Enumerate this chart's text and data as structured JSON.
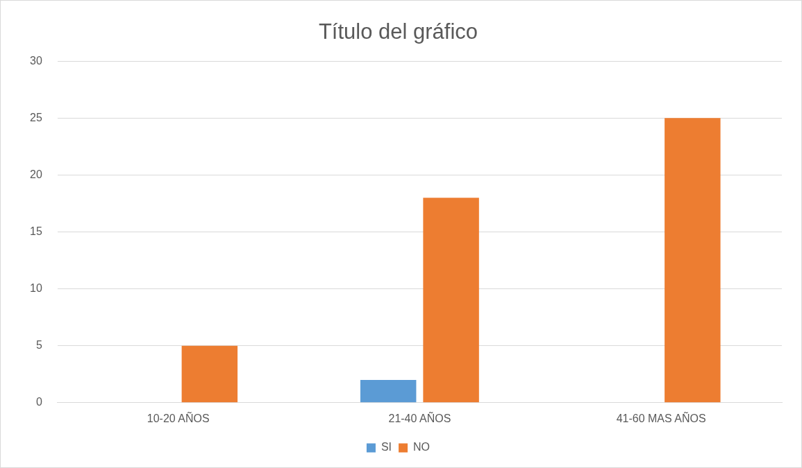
{
  "chart_data": {
    "type": "bar",
    "title": "Título del gráfico",
    "categories": [
      "10-20 AÑOS",
      "21-40 AÑOS",
      "41-60 MAS AÑOS"
    ],
    "series": [
      {
        "name": "SI",
        "color": "#5b9bd5",
        "values": [
          0,
          2,
          0
        ]
      },
      {
        "name": "NO",
        "color": "#ed7d31",
        "values": [
          5,
          18,
          25
        ]
      }
    ],
    "ylim": [
      0,
      30
    ],
    "yticks": [
      0,
      5,
      10,
      15,
      20,
      25,
      30
    ],
    "grid": "y",
    "legend": "bottom"
  }
}
